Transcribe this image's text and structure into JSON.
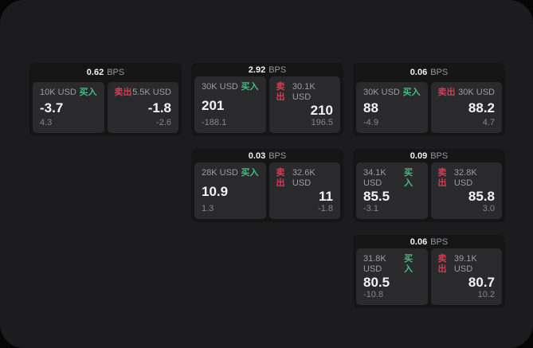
{
  "labels": {
    "bps_unit": "BPS",
    "buy": "买入",
    "sell": "卖出"
  },
  "colors": {
    "background": "#1c1c1e",
    "card": "#151516",
    "panel": "#2a2a2c",
    "buy_green": "#42bd7f",
    "sell_red": "#cc4054",
    "primary_text": "#f4f4f5",
    "muted_text": "#9d9da1"
  },
  "cards": [
    {
      "grid": {
        "row": 1,
        "col": 1
      },
      "bps": "0.62",
      "buy": {
        "amount": "10K USD",
        "price": "-3.7",
        "delta": "4.3"
      },
      "sell": {
        "amount": "5.5K USD",
        "price": "-1.8",
        "delta": "-2.6"
      }
    },
    {
      "grid": {
        "row": 1,
        "col": 2
      },
      "bps": "2.92",
      "buy": {
        "amount": "30K USD",
        "price": "201",
        "delta": "-188.1"
      },
      "sell": {
        "amount": "30.1K USD",
        "price": "210",
        "delta": "196.5"
      }
    },
    {
      "grid": {
        "row": 1,
        "col": 3
      },
      "bps": "0.06",
      "buy": {
        "amount": "30K USD",
        "price": "88",
        "delta": "-4.9"
      },
      "sell": {
        "amount": "30K USD",
        "price": "88.2",
        "delta": "4.7"
      }
    },
    {
      "grid": {
        "row": 2,
        "col": 2
      },
      "bps": "0.03",
      "buy": {
        "amount": "28K USD",
        "price": "10.9",
        "delta": "1.3"
      },
      "sell": {
        "amount": "32.6K USD",
        "price": "11",
        "delta": "-1.8"
      }
    },
    {
      "grid": {
        "row": 2,
        "col": 3
      },
      "bps": "0.09",
      "buy": {
        "amount": "34.1K USD",
        "price": "85.5",
        "delta": "-3.1"
      },
      "sell": {
        "amount": "32.8K USD",
        "price": "85.8",
        "delta": "3.0"
      }
    },
    {
      "grid": {
        "row": 3,
        "col": 3
      },
      "bps": "0.06",
      "buy": {
        "amount": "31.8K USD",
        "price": "80.5",
        "delta": "-10.8"
      },
      "sell": {
        "amount": "39.1K USD",
        "price": "80.7",
        "delta": "10.2"
      }
    }
  ]
}
